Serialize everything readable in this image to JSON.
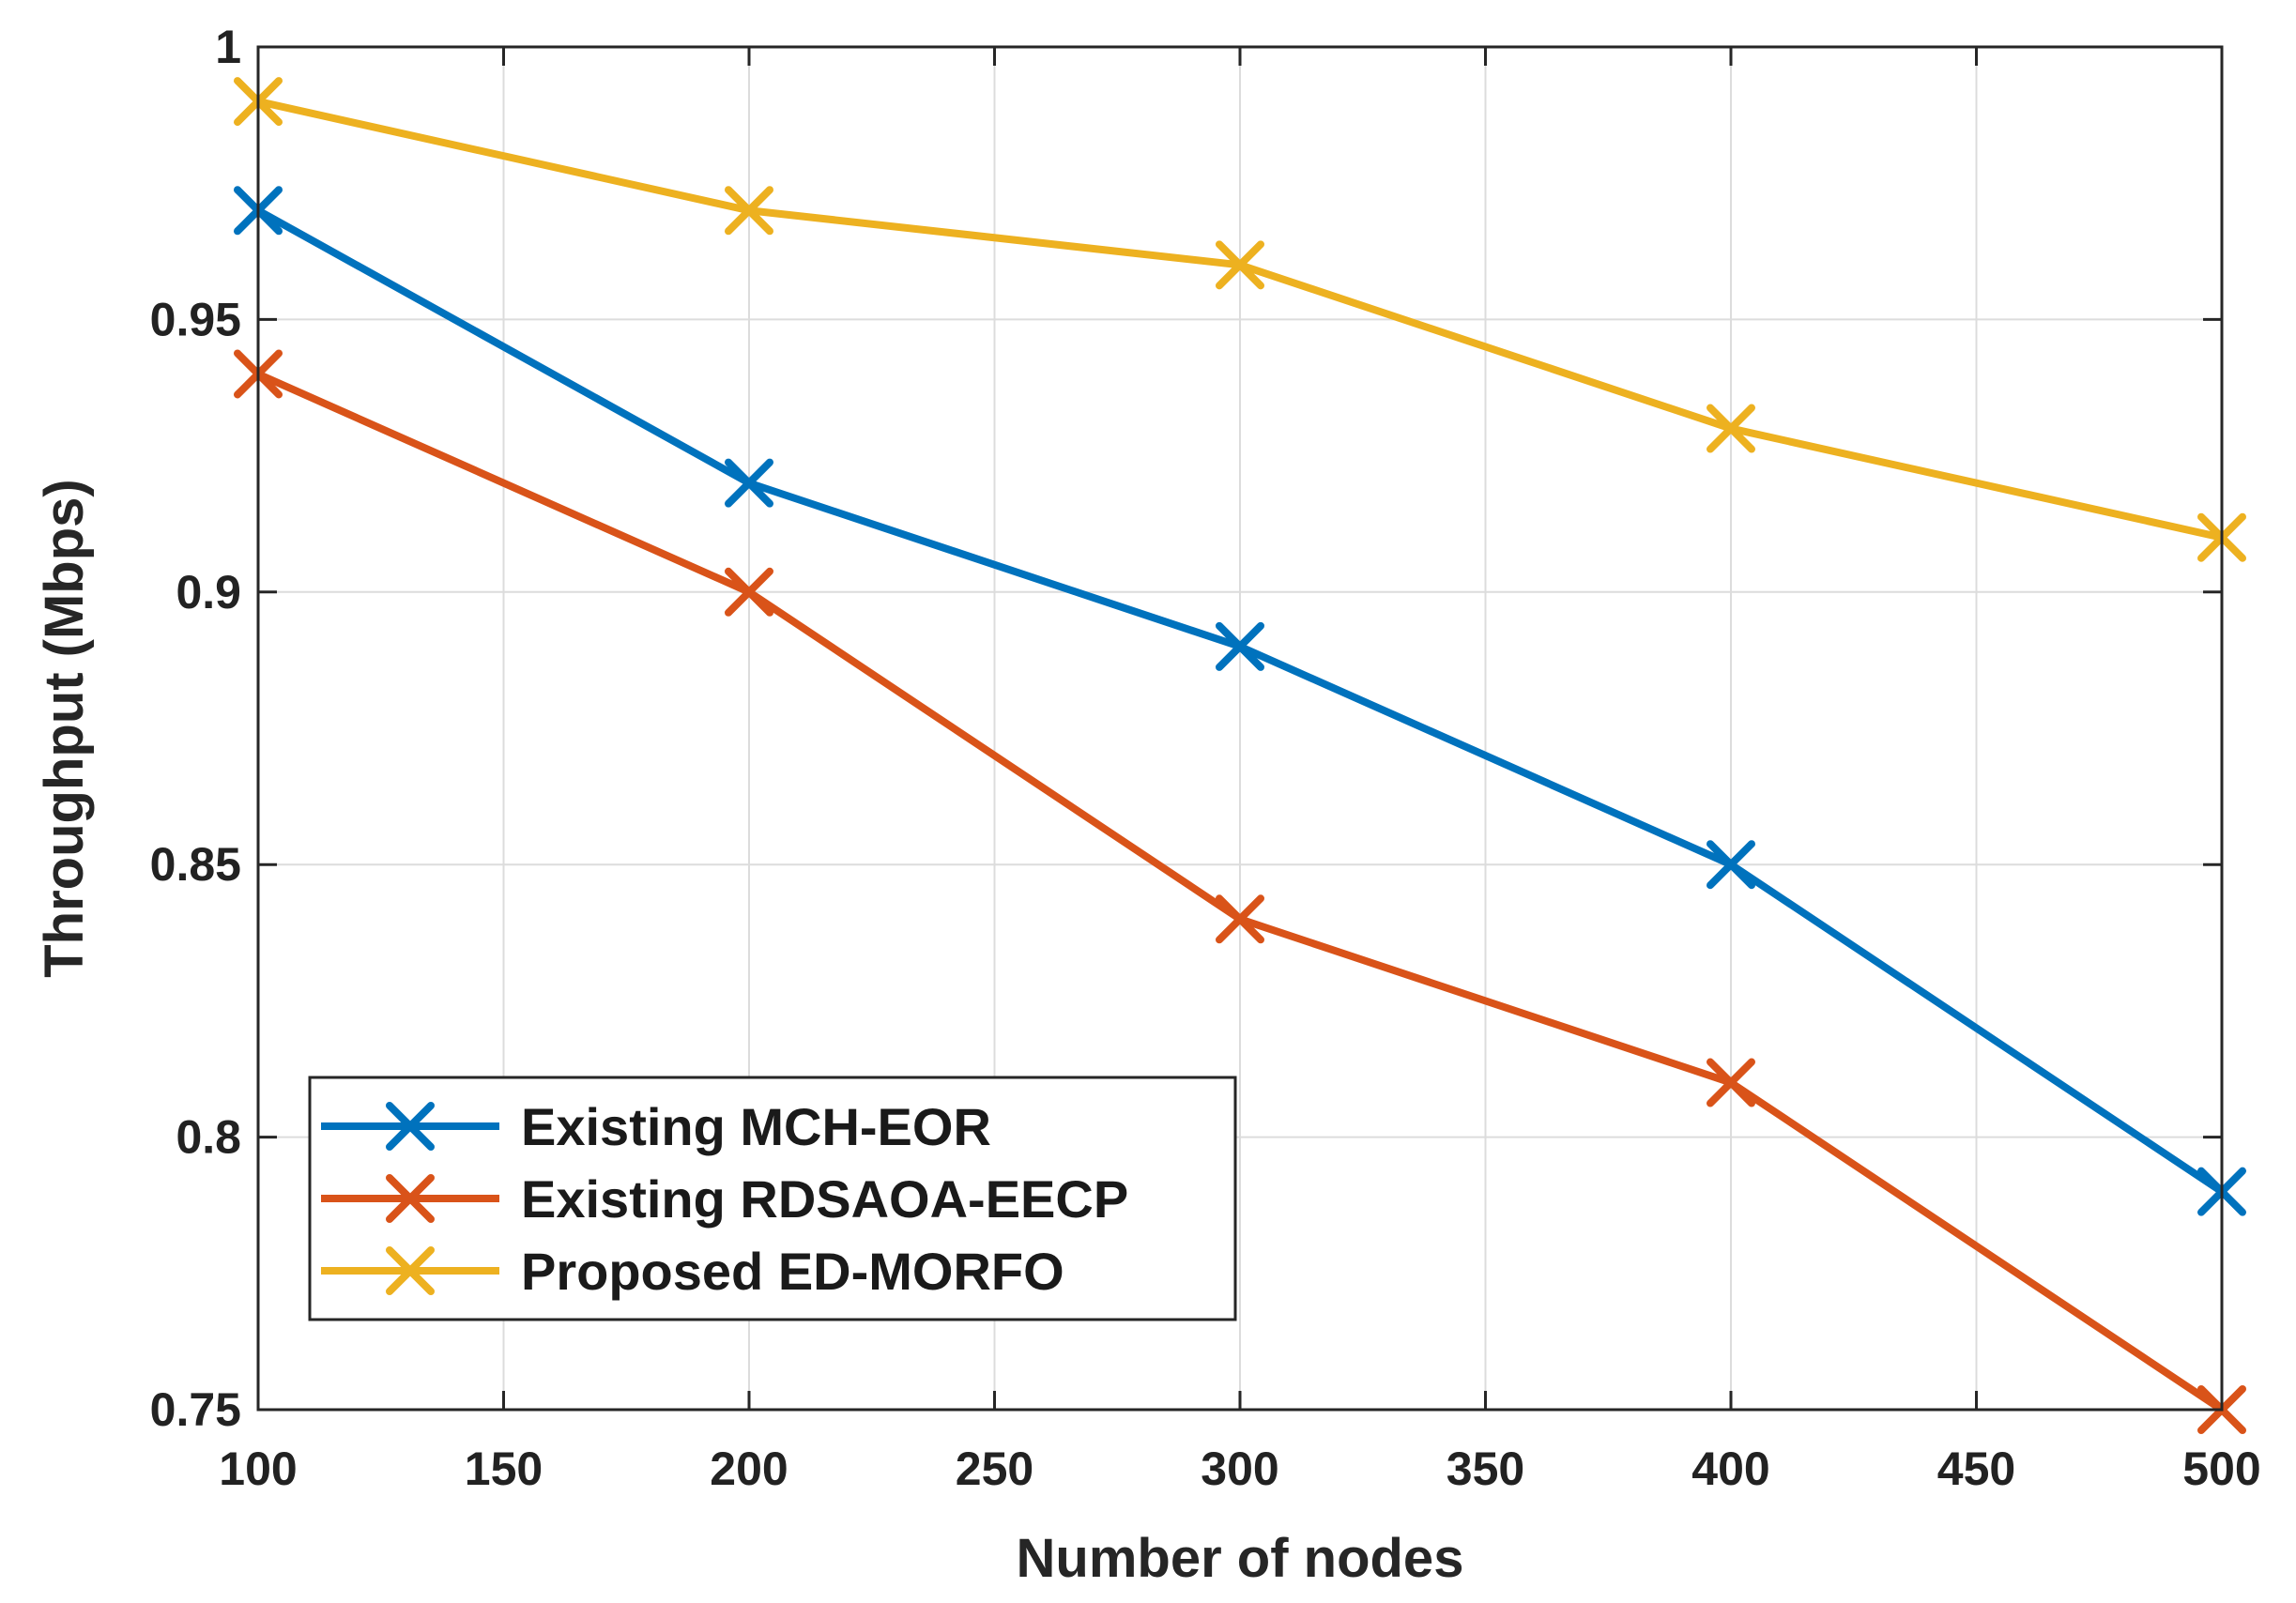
{
  "chart_data": {
    "type": "line",
    "title": "",
    "xlabel": "Number of nodes",
    "ylabel": "Throughput (Mbps)",
    "xlim": [
      100,
      500
    ],
    "ylim": [
      0.75,
      1
    ],
    "xticks": [
      100,
      150,
      200,
      250,
      300,
      350,
      400,
      450,
      500
    ],
    "xtick_labels": [
      "100",
      "150",
      "200",
      "250",
      "300",
      "350",
      "400",
      "450",
      "500"
    ],
    "yticks": [
      0.75,
      0.8,
      0.85,
      0.9,
      0.95,
      1
    ],
    "ytick_labels": [
      "0.75",
      "0.8",
      "0.85",
      "0.9",
      "0.95",
      "1"
    ],
    "grid": true,
    "legend_position": "bottom-left",
    "x": [
      100,
      200,
      300,
      400,
      500
    ],
    "series": [
      {
        "name": "Existing MCH-EOR",
        "color": "#0072BD",
        "marker": "x",
        "values": [
          0.97,
          0.92,
          0.89,
          0.85,
          0.79
        ]
      },
      {
        "name": "Existing RDSAOA-EECP",
        "color": "#D95319",
        "marker": "x",
        "values": [
          0.94,
          0.9,
          0.84,
          0.81,
          0.75
        ]
      },
      {
        "name": "Proposed ED-MORFO",
        "color": "#EDB120",
        "marker": "x",
        "values": [
          0.99,
          0.97,
          0.96,
          0.93,
          0.91
        ]
      }
    ]
  }
}
